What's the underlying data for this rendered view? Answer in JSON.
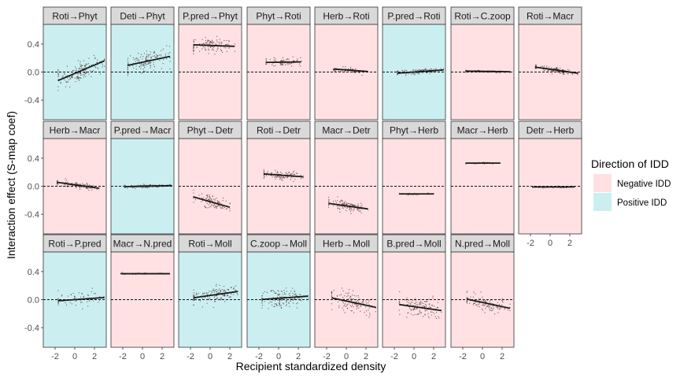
{
  "chart_data": {
    "type": "scatter",
    "xlabel": "Recipient standardized density",
    "ylabel": "Interaction effect (S-map coef)",
    "xlim": [
      -3.2,
      3.2
    ],
    "ylim": [
      -0.68,
      0.68
    ],
    "x_ticks": [
      -2,
      0,
      2
    ],
    "y_ticks": [
      -0.4,
      0.0,
      0.4
    ],
    "x_tick_labels": [
      "-2",
      "0",
      "2"
    ],
    "y_tick_labels": [
      "-0.4",
      "0.0",
      "0.4"
    ],
    "legend": {
      "title": "Direction of IDD",
      "position": "right",
      "entries": [
        {
          "name": "Negative IDD",
          "color": "#ffe1e3"
        },
        {
          "name": "Positive IDD",
          "color": "#cbeff1"
        }
      ]
    },
    "colors": {
      "negative": "#ffe1e3",
      "positive": "#cbeff1",
      "strip": "#d9d9d9",
      "points": "#4a2b2b",
      "line": "#1a1a1a"
    },
    "panels": [
      {
        "label": "Roti→Phyt",
        "idd": "positive",
        "x_range": [
          -1.7,
          3.0
        ],
        "intercept": -0.02,
        "slope": 0.06,
        "spread": 0.07,
        "n": 160
      },
      {
        "label": "Deti→Phyt",
        "idd": "positive",
        "x_range": [
          -1.5,
          2.8
        ],
        "intercept": 0.14,
        "slope": 0.03,
        "spread": 0.07,
        "n": 150
      },
      {
        "label": "P.pred→Phyt",
        "idd": "negative",
        "x_range": [
          -1.7,
          2.5
        ],
        "intercept": 0.38,
        "slope": -0.005,
        "spread": 0.05,
        "n": 130
      },
      {
        "label": "Phyt→Roti",
        "idd": "negative",
        "x_range": [
          -1.3,
          2.3
        ],
        "intercept": 0.14,
        "slope": 0.002,
        "spread": 0.03,
        "n": 80
      },
      {
        "label": "Herb→Roti",
        "idd": "negative",
        "x_range": [
          -1.3,
          2.2
        ],
        "intercept": 0.03,
        "slope": -0.01,
        "spread": 0.02,
        "n": 70
      },
      {
        "label": "P.pred→Roti",
        "idd": "positive",
        "x_range": [
          -1.7,
          3.0
        ],
        "intercept": 0.0,
        "slope": 0.01,
        "spread": 0.02,
        "n": 110
      },
      {
        "label": "Roti→C.zoop",
        "idd": "negative",
        "x_range": [
          -1.7,
          2.8
        ],
        "intercept": 0.01,
        "slope": -0.002,
        "spread": 0.008,
        "n": 90
      },
      {
        "label": "Roti→Macr",
        "idd": "negative",
        "x_range": [
          -1.5,
          2.8
        ],
        "intercept": 0.04,
        "slope": -0.02,
        "spread": 0.02,
        "n": 120
      },
      {
        "label": "Herb→Macr",
        "idd": "negative",
        "x_range": [
          -1.8,
          2.5
        ],
        "intercept": 0.02,
        "slope": -0.02,
        "spread": 0.02,
        "n": 120
      },
      {
        "label": "P.pred→Macr",
        "idd": "positive",
        "x_range": [
          -1.8,
          3.0
        ],
        "intercept": 0.0,
        "slope": 0.003,
        "spread": 0.01,
        "n": 130
      },
      {
        "label": "Phyt→Detr",
        "idd": "negative",
        "x_range": [
          -1.7,
          2.0
        ],
        "intercept": -0.22,
        "slope": -0.04,
        "spread": 0.05,
        "n": 110
      },
      {
        "label": "Roti→Detr",
        "idd": "negative",
        "x_range": [
          -1.5,
          2.5
        ],
        "intercept": 0.16,
        "slope": -0.01,
        "spread": 0.03,
        "n": 110
      },
      {
        "label": "Macr→Detr",
        "idd": "negative",
        "x_range": [
          -1.8,
          2.2
        ],
        "intercept": -0.28,
        "slope": -0.02,
        "spread": 0.04,
        "n": 120
      },
      {
        "label": "Phyt→Herb",
        "idd": "negative",
        "x_range": [
          -1.5,
          2.0
        ],
        "intercept": -0.11,
        "slope": 0.0,
        "spread": 0.006,
        "n": 50
      },
      {
        "label": "Macr→Herb",
        "idd": "negative",
        "x_range": [
          -1.7,
          1.8
        ],
        "intercept": 0.33,
        "slope": 0.0,
        "spread": 0.006,
        "n": 50
      },
      {
        "label": "Detr→Herb",
        "idd": "negative",
        "x_range": [
          -1.8,
          2.5
        ],
        "intercept": -0.01,
        "slope": 0.0,
        "spread": 0.006,
        "n": 60
      },
      {
        "label": "Roti→P.pred",
        "idd": "positive",
        "x_range": [
          -1.7,
          3.0
        ],
        "intercept": 0.0,
        "slope": 0.01,
        "spread": 0.05,
        "n": 60
      },
      {
        "label": "Macr→N.pred",
        "idd": "negative",
        "x_range": [
          -2.2,
          2.8
        ],
        "intercept": 0.37,
        "slope": 0.0,
        "spread": 0.006,
        "n": 60
      },
      {
        "label": "Roti→Moll",
        "idd": "positive",
        "x_range": [
          -1.7,
          2.8
        ],
        "intercept": 0.06,
        "slope": 0.02,
        "spread": 0.06,
        "n": 140
      },
      {
        "label": "C.zoop→Moll",
        "idd": "positive",
        "x_range": [
          -1.7,
          3.0
        ],
        "intercept": 0.02,
        "slope": 0.01,
        "spread": 0.07,
        "n": 150
      },
      {
        "label": "Herb→Moll",
        "idd": "negative",
        "x_range": [
          -1.5,
          3.0
        ],
        "intercept": -0.02,
        "slope": -0.03,
        "spread": 0.07,
        "n": 130
      },
      {
        "label": "B.pred→Moll",
        "idd": "negative",
        "x_range": [
          -1.5,
          2.8
        ],
        "intercept": -0.1,
        "slope": -0.02,
        "spread": 0.07,
        "n": 130
      },
      {
        "label": "N.pred→Moll",
        "idd": "negative",
        "x_range": [
          -1.6,
          2.8
        ],
        "intercept": -0.04,
        "slope": -0.03,
        "spread": 0.05,
        "n": 120
      }
    ]
  }
}
